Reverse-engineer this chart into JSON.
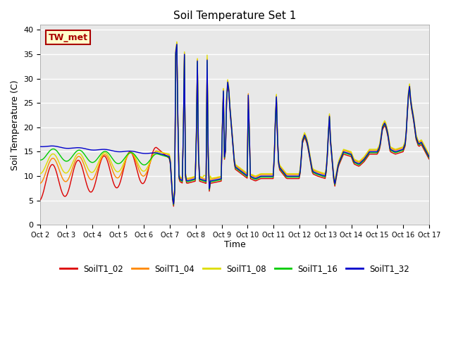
{
  "title": "Soil Temperature Set 1",
  "xlabel": "Time",
  "ylabel": "Soil Temperature (C)",
  "ylim": [
    0,
    41
  ],
  "yticks": [
    0,
    5,
    10,
    15,
    20,
    25,
    30,
    35,
    40
  ],
  "line_colors": {
    "SoilT1_02": "#dd0000",
    "SoilT1_04": "#ff8800",
    "SoilT1_08": "#dddd00",
    "SoilT1_16": "#00cc00",
    "SoilT1_32": "#0000cc"
  },
  "legend_label": "TW_met",
  "legend_bg": "#ffffcc",
  "legend_edge": "#aa0000",
  "bg_color": "#e8e8e8",
  "xtick_labels": [
    "Oct 2",
    "Oct 3",
    "Oct 4",
    "Oct 5",
    "Oct 6",
    "Oct 7",
    "Oct 8",
    "Oct 9",
    "Oct 10",
    "Oct 11",
    "Oct 12",
    "Oct 13",
    "Oct 14",
    "Oct 15",
    "Oct 16",
    "Oct 17"
  ],
  "line_width": 1.0
}
